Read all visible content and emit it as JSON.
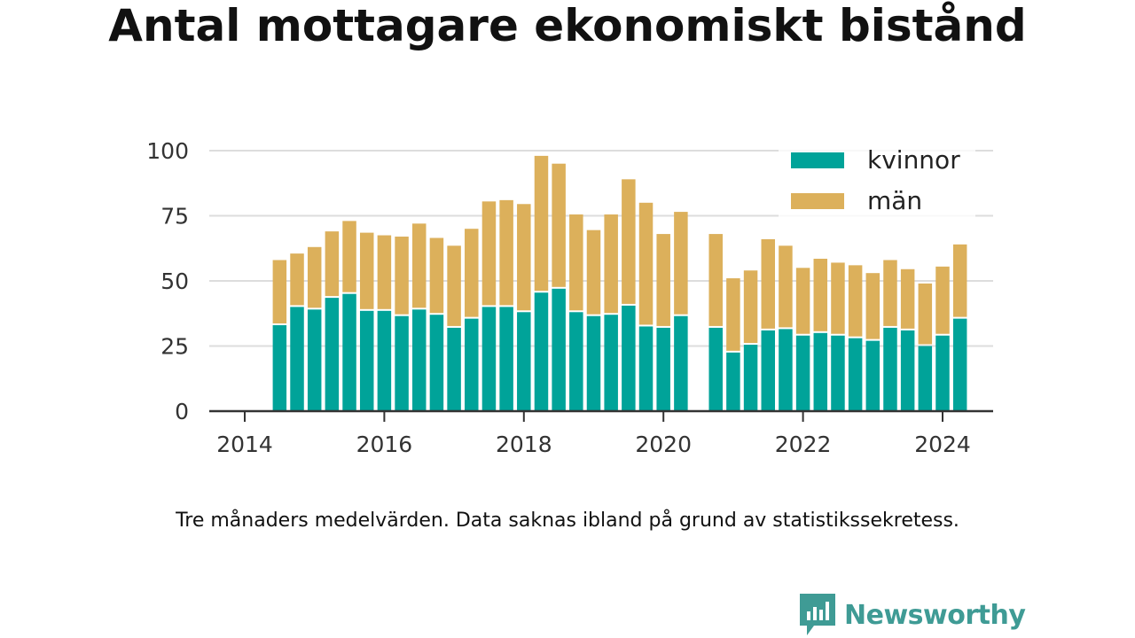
{
  "title": "Antal mottagare ekonomiskt bistånd",
  "footnote": "Tre månaders medelvärden. Data saknas ibland på grund av statistikssekretess.",
  "brand": {
    "name": "Newsworthy"
  },
  "colors": {
    "kvinnor": "#00a399",
    "man": "#dcb05b",
    "brand": "#3f9b95"
  },
  "chart_data": {
    "type": "bar",
    "stacked": true,
    "xlim": [
      2014,
      2024.5
    ],
    "ylim": [
      0,
      100
    ],
    "yticks": [
      "0",
      "25",
      "50",
      "75",
      "100"
    ],
    "xticks": [
      "2014",
      "2016",
      "2018",
      "2020",
      "2022",
      "2024"
    ],
    "grid": true,
    "legend_position": "top-right",
    "x": [
      "2014-07",
      "2014-10",
      "2015-01",
      "2015-04",
      "2015-07",
      "2015-10",
      "2016-01",
      "2016-04",
      "2016-07",
      "2016-10",
      "2017-01",
      "2017-04",
      "2017-07",
      "2017-10",
      "2018-01",
      "2018-04",
      "2018-07",
      "2018-10",
      "2019-01",
      "2019-04",
      "2019-07",
      "2019-10",
      "2020-01",
      "2020-04",
      "2020-10",
      "2021-01",
      "2021-04",
      "2021-07",
      "2021-10",
      "2022-01",
      "2022-04",
      "2022-07",
      "2022-10",
      "2023-01",
      "2023-04",
      "2023-07",
      "2023-10",
      "2024-01",
      "2024-04"
    ],
    "series": [
      {
        "name": "kvinnor",
        "values": [
          33,
          40,
          39,
          43.5,
          45,
          38.5,
          38.5,
          36.5,
          39,
          37,
          32,
          35.5,
          40,
          40,
          38,
          45.5,
          47,
          38,
          36.5,
          37,
          40.5,
          32.5,
          32,
          36.5,
          32,
          22.5,
          25.5,
          31,
          31.5,
          29,
          30,
          29,
          28,
          27,
          32,
          31,
          25,
          29,
          35.5
        ]
      },
      {
        "name": "män",
        "values": [
          25,
          20.5,
          24,
          25.5,
          28,
          30,
          29,
          30.5,
          33,
          29.5,
          31.5,
          34.5,
          40.5,
          41,
          41.5,
          52.5,
          48,
          37.5,
          33,
          38.5,
          48.5,
          47.5,
          36,
          40,
          36,
          28.5,
          28.5,
          35,
          32,
          26,
          28.5,
          28,
          28,
          26,
          26,
          23.5,
          24,
          26.5,
          28.5
        ]
      }
    ]
  }
}
